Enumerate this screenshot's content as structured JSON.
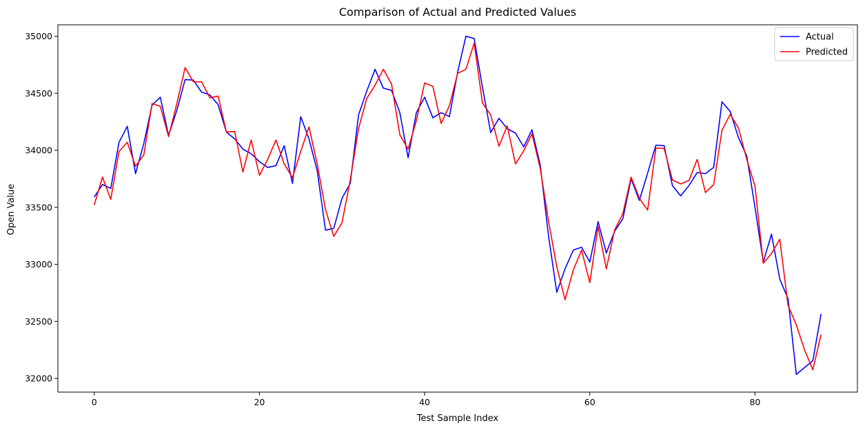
{
  "chart_data": {
    "type": "line",
    "title": "Comparison of Actual and Predicted Values",
    "xlabel": "Test Sample Index",
    "ylabel": "Open Value",
    "xlim": [
      -4.4,
      92.4
    ],
    "ylim": [
      31880,
      35100
    ],
    "xticks": [
      0,
      20,
      40,
      60,
      80
    ],
    "yticks": [
      32000,
      32500,
      33000,
      33500,
      34000,
      34500,
      35000
    ],
    "grid": false,
    "legend": "top-right",
    "series": [
      {
        "name": "Actual",
        "color": "#0000ff",
        "values": [
          33590,
          33700,
          33665,
          34070,
          34210,
          33795,
          34060,
          34395,
          34465,
          34130,
          34350,
          34620,
          34615,
          34510,
          34485,
          34400,
          34160,
          34100,
          34010,
          33970,
          33900,
          33850,
          33865,
          34040,
          33710,
          34295,
          34100,
          33820,
          33300,
          33315,
          33580,
          33710,
          34310,
          34520,
          34710,
          34545,
          34525,
          34330,
          33935,
          34330,
          34465,
          34285,
          34330,
          34295,
          34685,
          35000,
          34980,
          34555,
          34155,
          34280,
          34190,
          34150,
          34030,
          34180,
          33870,
          33250,
          32755,
          32960,
          33125,
          33150,
          33020,
          33375,
          33100,
          33290,
          33400,
          33750,
          33560,
          33800,
          34045,
          34040,
          33690,
          33600,
          33690,
          33805,
          33795,
          33850,
          34425,
          34340,
          34110,
          33950,
          33500,
          33020,
          33265,
          32870,
          32700,
          32035,
          32095,
          32155,
          32565
        ]
      },
      {
        "name": "Predicted",
        "color": "#ff0000",
        "values": [
          33520,
          33765,
          33570,
          33990,
          34070,
          33860,
          33960,
          34410,
          34385,
          34120,
          34410,
          34725,
          34600,
          34600,
          34460,
          34475,
          34160,
          34165,
          33810,
          34090,
          33780,
          33920,
          34090,
          33880,
          33760,
          33990,
          34205,
          33880,
          33480,
          33245,
          33365,
          33740,
          34190,
          34455,
          34570,
          34710,
          34580,
          34135,
          34010,
          34260,
          34590,
          34560,
          34235,
          34390,
          34675,
          34710,
          34940,
          34415,
          34310,
          34035,
          34215,
          33880,
          33995,
          34145,
          33840,
          33380,
          32980,
          32690,
          32950,
          33125,
          32840,
          33330,
          32960,
          33300,
          33445,
          33765,
          33580,
          33475,
          34020,
          34015,
          33740,
          33705,
          33735,
          33920,
          33630,
          33700,
          34175,
          34315,
          34195,
          33920,
          33685,
          33010,
          33095,
          33220,
          32640,
          32470,
          32250,
          32075,
          32385
        ]
      }
    ]
  }
}
